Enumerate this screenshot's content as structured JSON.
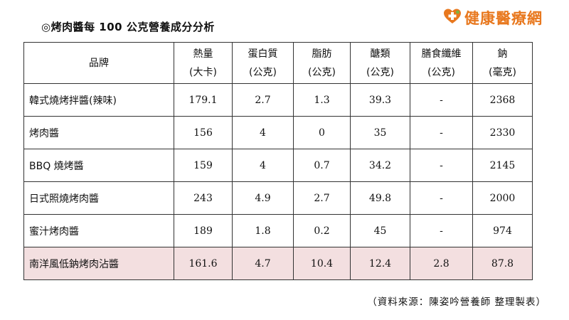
{
  "title": "◎烤肉醬每 100 公克營養成分分析",
  "logo": {
    "text": "健康醫療網",
    "color": "#e8781e"
  },
  "table": {
    "headers": [
      {
        "line1": "品牌",
        "line2": ""
      },
      {
        "line1": "熱量",
        "line2": "(大卡)"
      },
      {
        "line1": "蛋白質",
        "line2": "(公克)"
      },
      {
        "line1": "脂肪",
        "line2": "(公克)"
      },
      {
        "line1": "醣類",
        "line2": "(公克)"
      },
      {
        "line1": "膳食纖維",
        "line2": "(公克)"
      },
      {
        "line1": "鈉",
        "line2": "(毫克)"
      }
    ],
    "rows": [
      {
        "name": "韓式燒烤拌醬(辣味)",
        "values": [
          "179.1",
          "2.7",
          "1.3",
          "39.3",
          "-",
          "2368"
        ]
      },
      {
        "name": "烤肉醬",
        "values": [
          "156",
          "4",
          "0",
          "35",
          "-",
          "2330"
        ]
      },
      {
        "name": "BBQ 燒烤醬",
        "values": [
          "159",
          "4",
          "0.7",
          "34.2",
          "-",
          "2145"
        ]
      },
      {
        "name": "日式照燒烤肉醬",
        "values": [
          "243",
          "4.9",
          "2.7",
          "49.8",
          "-",
          "2000"
        ]
      },
      {
        "name": "蜜汁烤肉醬",
        "values": [
          "189",
          "1.8",
          "0.2",
          "45",
          "-",
          "974"
        ]
      },
      {
        "name": "南洋風低鈉烤肉沾醬",
        "values": [
          "161.6",
          "4.7",
          "10.4",
          "12.4",
          "2.8",
          "87.8"
        ]
      }
    ],
    "highlight_color": "#f3dfe0"
  },
  "source": "（資料來源：陳姿吟營養師 整理製表）"
}
